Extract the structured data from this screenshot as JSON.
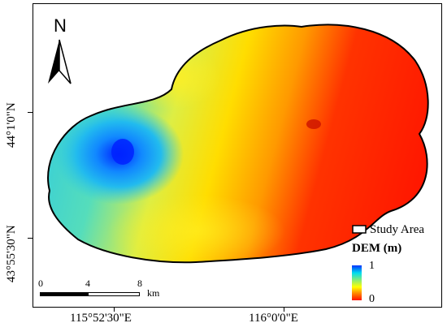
{
  "north_arrow": {
    "label": "N"
  },
  "axes": {
    "x_ticks": [
      "115°52'30\"E",
      "116°0'0\"E"
    ],
    "y_ticks": [
      "44°1'0\"N",
      "43°55'30\"N"
    ]
  },
  "legend": {
    "study_area_label": "Study Area",
    "dem_title": "DEM (m)",
    "ramp_max": "1",
    "ramp_min": "0",
    "colors": [
      "#0033ff",
      "#00ddee",
      "#99ee66",
      "#ffff00",
      "#ff8800",
      "#ff1100"
    ]
  },
  "scale_bar": {
    "ticks": [
      "0",
      "4",
      "8"
    ],
    "unit": "km"
  }
}
